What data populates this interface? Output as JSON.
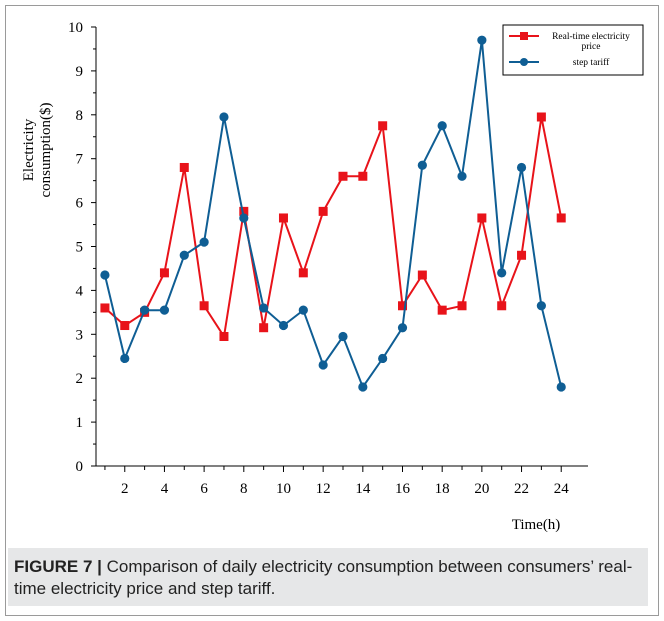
{
  "chart_data": {
    "type": "line",
    "title": "",
    "xlabel": "Time(h)",
    "ylabel": "Electricity consumption($)",
    "ylabel_lines": [
      "Electricity",
      "consumption($)"
    ],
    "xlim": [
      1,
      24
    ],
    "ylim": [
      0,
      10
    ],
    "x": [
      1,
      2,
      3,
      4,
      5,
      6,
      7,
      8,
      9,
      10,
      11,
      12,
      13,
      14,
      15,
      16,
      17,
      18,
      19,
      20,
      21,
      22,
      23,
      24
    ],
    "xticks": [
      2,
      4,
      6,
      8,
      10,
      12,
      14,
      16,
      18,
      20,
      22,
      24
    ],
    "yticks": [
      0,
      1,
      2,
      3,
      4,
      5,
      6,
      7,
      8,
      9,
      10
    ],
    "grid": false,
    "legend_position": "top-right",
    "series": [
      {
        "name": "Real-time electricity price",
        "legend_lines": [
          "Real-time electricity",
          "price"
        ],
        "color": "#e8131a",
        "marker": "square",
        "values": [
          3.6,
          3.2,
          3.5,
          4.4,
          6.8,
          3.65,
          2.95,
          5.8,
          3.15,
          5.65,
          4.4,
          5.8,
          6.6,
          6.6,
          7.75,
          3.65,
          4.35,
          3.55,
          3.65,
          5.65,
          3.65,
          4.8,
          7.95,
          5.65
        ]
      },
      {
        "name": "step tariff",
        "legend_lines": [
          "step tariff"
        ],
        "color": "#0f5e94",
        "marker": "circle",
        "values": [
          4.35,
          2.45,
          3.55,
          3.55,
          4.8,
          5.1,
          7.95,
          5.65,
          3.6,
          3.2,
          3.55,
          2.3,
          2.95,
          1.8,
          2.45,
          3.15,
          6.85,
          7.75,
          6.6,
          9.7,
          4.4,
          6.8,
          3.65,
          1.8
        ]
      }
    ]
  },
  "caption": {
    "label": "FIGURE 7 |",
    "text": " Comparison of daily electricity consumption between consumers’ real-time electricity price and step tariff."
  }
}
